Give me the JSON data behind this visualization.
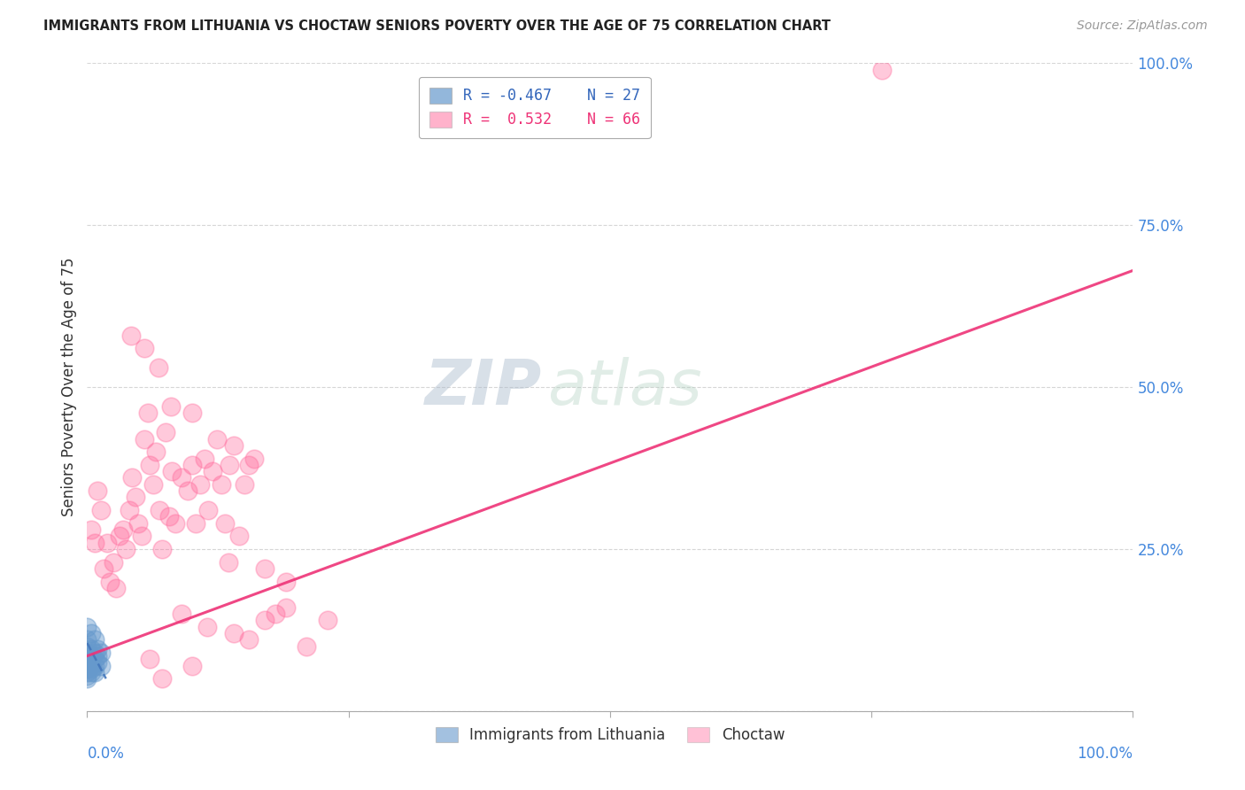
{
  "title": "IMMIGRANTS FROM LITHUANIA VS CHOCTAW SENIORS POVERTY OVER THE AGE OF 75 CORRELATION CHART",
  "source": "Source: ZipAtlas.com",
  "ylabel": "Seniors Poverty Over the Age of 75",
  "watermark_zip": "ZIP",
  "watermark_atlas": "atlas",
  "xlim": [
    0.0,
    1.0
  ],
  "ylim": [
    0.0,
    1.0
  ],
  "yticks": [
    0.0,
    0.25,
    0.5,
    0.75,
    1.0
  ],
  "ytick_labels": [
    "",
    "25.0%",
    "50.0%",
    "75.0%",
    "100.0%"
  ],
  "xticks": [
    0.0,
    0.25,
    0.5,
    0.75,
    1.0
  ],
  "blue_color": "#6699CC",
  "pink_color": "#FF6699",
  "blue_line_color": "#4477BB",
  "pink_line_color": "#EE3377",
  "blue_scatter": [
    [
      0.0,
      0.13
    ],
    [
      0.0,
      0.11
    ],
    [
      0.0,
      0.1
    ],
    [
      0.0,
      0.09
    ],
    [
      0.0,
      0.08
    ],
    [
      0.0,
      0.07
    ],
    [
      0.0,
      0.065
    ],
    [
      0.0,
      0.06
    ],
    [
      0.0,
      0.055
    ],
    [
      0.0,
      0.05
    ],
    [
      0.004,
      0.12
    ],
    [
      0.004,
      0.095
    ],
    [
      0.004,
      0.085
    ],
    [
      0.004,
      0.075
    ],
    [
      0.004,
      0.07
    ],
    [
      0.004,
      0.065
    ],
    [
      0.004,
      0.06
    ],
    [
      0.007,
      0.11
    ],
    [
      0.007,
      0.09
    ],
    [
      0.007,
      0.08
    ],
    [
      0.007,
      0.07
    ],
    [
      0.007,
      0.06
    ],
    [
      0.01,
      0.095
    ],
    [
      0.01,
      0.085
    ],
    [
      0.01,
      0.075
    ],
    [
      0.013,
      0.09
    ],
    [
      0.013,
      0.07
    ]
  ],
  "pink_scatter": [
    [
      0.004,
      0.28
    ],
    [
      0.007,
      0.26
    ],
    [
      0.01,
      0.34
    ],
    [
      0.013,
      0.31
    ],
    [
      0.016,
      0.22
    ],
    [
      0.019,
      0.26
    ],
    [
      0.022,
      0.2
    ],
    [
      0.025,
      0.23
    ],
    [
      0.028,
      0.19
    ],
    [
      0.031,
      0.27
    ],
    [
      0.034,
      0.28
    ],
    [
      0.037,
      0.25
    ],
    [
      0.04,
      0.31
    ],
    [
      0.043,
      0.36
    ],
    [
      0.046,
      0.33
    ],
    [
      0.049,
      0.29
    ],
    [
      0.052,
      0.27
    ],
    [
      0.055,
      0.42
    ],
    [
      0.058,
      0.46
    ],
    [
      0.06,
      0.38
    ],
    [
      0.063,
      0.35
    ],
    [
      0.066,
      0.4
    ],
    [
      0.069,
      0.31
    ],
    [
      0.072,
      0.25
    ],
    [
      0.075,
      0.43
    ],
    [
      0.078,
      0.3
    ],
    [
      0.081,
      0.37
    ],
    [
      0.084,
      0.29
    ],
    [
      0.09,
      0.36
    ],
    [
      0.096,
      0.34
    ],
    [
      0.1,
      0.38
    ],
    [
      0.104,
      0.29
    ],
    [
      0.108,
      0.35
    ],
    [
      0.112,
      0.39
    ],
    [
      0.116,
      0.31
    ],
    [
      0.12,
      0.37
    ],
    [
      0.124,
      0.42
    ],
    [
      0.128,
      0.35
    ],
    [
      0.132,
      0.29
    ],
    [
      0.136,
      0.38
    ],
    [
      0.14,
      0.41
    ],
    [
      0.145,
      0.27
    ],
    [
      0.15,
      0.35
    ],
    [
      0.155,
      0.38
    ],
    [
      0.16,
      0.39
    ],
    [
      0.17,
      0.22
    ],
    [
      0.18,
      0.15
    ],
    [
      0.19,
      0.2
    ],
    [
      0.135,
      0.23
    ],
    [
      0.06,
      0.08
    ],
    [
      0.072,
      0.05
    ],
    [
      0.1,
      0.07
    ],
    [
      0.09,
      0.15
    ],
    [
      0.115,
      0.13
    ],
    [
      0.14,
      0.12
    ],
    [
      0.155,
      0.11
    ],
    [
      0.17,
      0.14
    ],
    [
      0.19,
      0.16
    ],
    [
      0.21,
      0.1
    ],
    [
      0.23,
      0.14
    ],
    [
      0.042,
      0.58
    ],
    [
      0.055,
      0.56
    ],
    [
      0.068,
      0.53
    ],
    [
      0.08,
      0.47
    ],
    [
      0.1,
      0.46
    ],
    [
      0.76,
      0.99
    ]
  ],
  "blue_trend_x": [
    0.0,
    0.018
  ],
  "blue_trend_y": [
    0.105,
    0.05
  ],
  "pink_trend_x": [
    0.0,
    1.0
  ],
  "pink_trend_y": [
    0.085,
    0.68
  ]
}
